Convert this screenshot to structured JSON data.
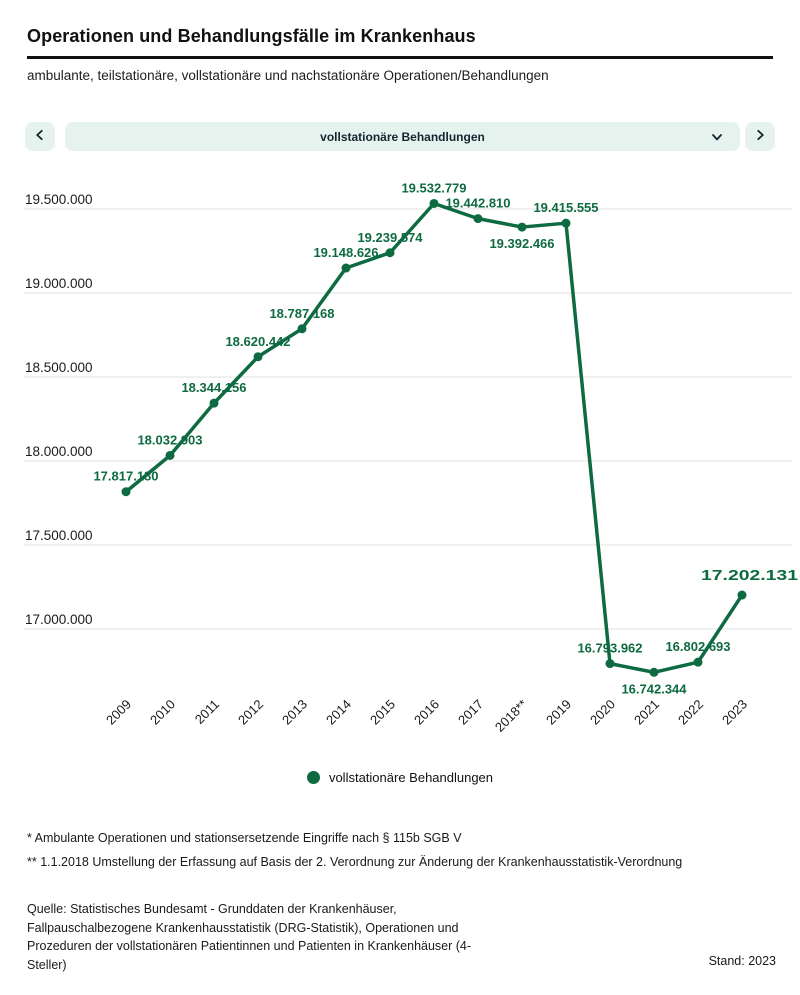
{
  "header": {
    "title": "Operationen und Behandlungsfälle im Krankenhaus",
    "subtitle": "ambulante, teilstationäre, vollstationäre und nachstationäre Operationen/Behandlungen"
  },
  "controls": {
    "selected_option": "vollstationäre Behandlungen",
    "prev_icon": "chevron-left",
    "next_icon": "chevron-right"
  },
  "chart_data": {
    "type": "line",
    "categories": [
      "2009",
      "2010",
      "2011",
      "2012",
      "2013",
      "2014",
      "2015",
      "2016",
      "2017",
      "2018**",
      "2019",
      "2020",
      "2021",
      "2022",
      "2023"
    ],
    "series": [
      {
        "name": "vollstationäre Behandlungen",
        "values": [
          17817180,
          18032903,
          18344156,
          18620442,
          18787168,
          19148626,
          19239574,
          19532779,
          19442810,
          19392466,
          19415555,
          16793962,
          16742344,
          16802693,
          17202131
        ]
      }
    ],
    "yticks": [
      19500000,
      19000000,
      18500000,
      18000000,
      17500000,
      17000000
    ],
    "ytick_labels": [
      "19.500.000",
      "19.000.000",
      "18.500.000",
      "18.000.000",
      "17.500.000",
      "17.000.000"
    ],
    "ylim": [
      16650000,
      19750000
    ],
    "grid": true,
    "legend_position": "bottom",
    "number_format": "de-DE",
    "label_below_indices": [
      9,
      12
    ],
    "xlabel": "",
    "ylabel": ""
  },
  "legend": {
    "label": "vollstationäre Behandlungen"
  },
  "footnotes": [
    "* Ambulante Operationen und stationsersetzende Eingriffe nach § 115b SGB V",
    "** 1.1.2018 Umstellung der Erfassung auf Basis der 2. Verordnung zur Änderung der Krankenhausstatistik-Verordnung"
  ],
  "source_lines": [
    "Quelle: Statistisches Bundesamt - Grunddaten der Krankenhäuser,",
    "Fallpauschalbezogene Krankenhausstatistik (DRG-Statistik), Operationen und",
    "Prozeduren der vollstationären Patientinnen und Patienten in Krankenhäuser (4-",
    "Steller)"
  ],
  "stand": "Stand: 2023",
  "colors": {
    "accent_green": "#0e6b41",
    "control_bg": "#e6f2ee",
    "grid": "#e2e2e2",
    "text": "#1a1a1a"
  }
}
